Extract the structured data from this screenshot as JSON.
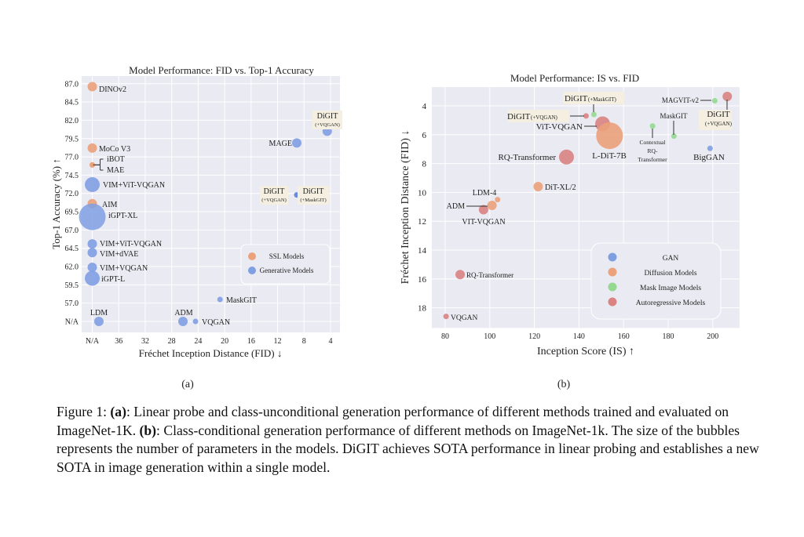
{
  "colors": {
    "plot_bg": "#eaeaf2",
    "grid": "#ffffff",
    "ssl": "#eba17a",
    "generative": "#7f9fe3",
    "generative_dark": "#5b7fdc",
    "gan": "#7f9fe3",
    "diffusion": "#eba17a",
    "mask": "#94d98f",
    "autoregressive": "#d98383",
    "highlight_box": "#f4efe0"
  },
  "chart_data": [
    {
      "type": "scatter",
      "title": "Model Performance: FID vs. Top-1 Accuracy",
      "xlabel": "Fréchet Inception Distance (FID) ↓",
      "ylabel": "Top-1 Accuracy (%) ↑",
      "x_inverted": true,
      "x_ticks": [
        "N/A",
        "36",
        "32",
        "28",
        "24",
        "20",
        "16",
        "12",
        "8",
        "4"
      ],
      "y_ticks": [
        "N/A",
        "57.0",
        "59.5",
        "62.0",
        "64.5",
        "67.0",
        "69.5",
        "72.0",
        "74.5",
        "77.0",
        "79.5",
        "82.0",
        "84.5",
        "87.0"
      ],
      "grid": true,
      "legend": {
        "placement": "center-right",
        "entries": [
          {
            "name": "SSL Models",
            "color": "#eba17a"
          },
          {
            "name": "Generative Models",
            "color": "#7f9fe3"
          }
        ]
      },
      "points": [
        {
          "label": "DINOv2",
          "x": "N/A",
          "y": 86.6,
          "group": "SSL Models",
          "size": "small"
        },
        {
          "label": "MoCo V3",
          "x": "N/A",
          "y": 78.2,
          "group": "SSL Models",
          "size": "small"
        },
        {
          "label": "iBOT",
          "x": "N/A",
          "y": 75.9,
          "group": "SSL Models",
          "size": "tiny"
        },
        {
          "label": "MAE",
          "x": "N/A",
          "y": 75.9,
          "group": "SSL Models",
          "size": "tiny"
        },
        {
          "label": "VIM+ViT-VQGAN",
          "x": "N/A",
          "y": 73.2,
          "group": "Generative Models",
          "size": "large"
        },
        {
          "label": "AIM",
          "x": "N/A",
          "y": 70.6,
          "group": "SSL Models",
          "size": "small"
        },
        {
          "label": "iGPT-XL",
          "x": "N/A",
          "y": 68.8,
          "group": "Generative Models",
          "size": "huge"
        },
        {
          "label": "VIM+ViT-VQGAN",
          "x": "N/A",
          "y": 65.1,
          "group": "Generative Models",
          "size": "small"
        },
        {
          "label": "VIM+dVAE",
          "x": "N/A",
          "y": 63.9,
          "group": "Generative Models",
          "size": "small"
        },
        {
          "label": "VIM+VQGAN",
          "x": "N/A",
          "y": 61.9,
          "group": "Generative Models",
          "size": "small"
        },
        {
          "label": "iGPT-L",
          "x": "N/A",
          "y": 60.4,
          "group": "Generative Models",
          "size": "large"
        },
        {
          "label": "MaskGIT",
          "x": 20.7,
          "y": 57.5,
          "group": "Generative Models",
          "size": "tiny"
        },
        {
          "label": "LDM",
          "x": 39,
          "y": "N/A",
          "group": "Generative Models",
          "size": "small"
        },
        {
          "label": "ADM",
          "x": 26.3,
          "y": "N/A",
          "group": "Generative Models",
          "size": "small"
        },
        {
          "label": "VQGAN",
          "x": 24.4,
          "y": "N/A",
          "group": "Generative Models",
          "size": "tiny"
        },
        {
          "label": "MAGE",
          "x": 9.1,
          "y": 78.9,
          "group": "Generative Models",
          "size": "small"
        },
        {
          "label": "DiGIT",
          "sublabel": "(+VQGAN)",
          "x": 4.5,
          "y": 80.5,
          "group": "Generative Models",
          "size": "small"
        },
        {
          "label": "DiGIT",
          "sublabel": "(+VQGAN)",
          "label2": "DiGIT",
          "sublabel2": "(+MaskGIT)",
          "x": 9.1,
          "y": 71.8,
          "group": "Generative Models",
          "size": "tiny",
          "dark": true
        }
      ]
    },
    {
      "type": "scatter",
      "title": "Model Performance: IS vs. FID",
      "xlabel": "Inception Score (IS) ↑",
      "ylabel": "Fréchet Inception Distance (FID) ↓",
      "y_inverted": true,
      "x_ticks": [
        80,
        100,
        120,
        140,
        160,
        180,
        200
      ],
      "y_ticks": [
        4,
        6,
        8,
        10,
        12,
        14,
        16,
        18
      ],
      "xlim": [
        74,
        212
      ],
      "ylim": [
        2.7,
        19.4
      ],
      "grid": true,
      "legend": {
        "placement": "lower-right",
        "entries": [
          {
            "name": "GAN",
            "color": "#7f9fe3"
          },
          {
            "name": "Diffusion Models",
            "color": "#eba17a"
          },
          {
            "name": "Mask Image Models",
            "color": "#94d98f"
          },
          {
            "name": "Autoregressive Models",
            "color": "#d98383"
          }
        ]
      },
      "points": [
        {
          "label": "DiGIT",
          "sublabel": "(+MaskGIT)",
          "x": 146.7,
          "y": 4.6,
          "group": "Mask Image Models",
          "size": "tiny"
        },
        {
          "label": "DiGIT",
          "sublabel": "(+VQGAN)",
          "x": 143.2,
          "y": 4.7,
          "group": "Autoregressive Models",
          "size": "tiny"
        },
        {
          "label": "ViT-VQGAN",
          "x": 150.6,
          "y": 5.25,
          "group": "Autoregressive Models",
          "size": "large"
        },
        {
          "label": "L-DiT-7B",
          "x": 153.7,
          "y": 6.07,
          "group": "Diffusion Models",
          "size": "huge"
        },
        {
          "label": "RQ-Transformer",
          "x": 134.4,
          "y": 7.55,
          "group": "Autoregressive Models",
          "size": "large"
        },
        {
          "label": "DiT-XL/2",
          "x": 121.7,
          "y": 9.6,
          "group": "Diffusion Models",
          "size": "small"
        },
        {
          "label": "LDM-4",
          "x": 103.5,
          "y": 10.5,
          "group": "Diffusion Models",
          "size": "tiny"
        },
        {
          "label": "ADM",
          "x": 101.0,
          "y": 10.9,
          "group": "Diffusion Models",
          "size": "small"
        },
        {
          "label": "VIT-VQGAN",
          "x": 97.2,
          "y": 11.2,
          "group": "Autoregressive Models",
          "size": "small"
        },
        {
          "label": "Contextual",
          "label_line2": "RQ-",
          "label_line3": "Transformer",
          "x": 173,
          "y": 5.4,
          "group": "Mask Image Models",
          "size": "tiny"
        },
        {
          "label": "MaskGIT",
          "x": 182.6,
          "y": 6.1,
          "group": "Mask Image Models",
          "size": "tiny"
        },
        {
          "label": "BigGAN",
          "x": 198.8,
          "y": 6.95,
          "group": "GAN",
          "size": "tiny"
        },
        {
          "label": "MAGVIT-v2",
          "x": 200.9,
          "y": 3.65,
          "group": "Mask Image Models",
          "size": "tiny"
        },
        {
          "label": "DiGIT",
          "sublabel": "(+VQGAN)",
          "x": 206.5,
          "y": 3.35,
          "group": "Autoregressive Models",
          "size": "small"
        },
        {
          "label": "RQ-Transformer",
          "x": 86.7,
          "y": 15.7,
          "group": "Autoregressive Models",
          "size": "small"
        },
        {
          "label": "VQGAN",
          "x": 80.4,
          "y": 18.6,
          "group": "Autoregressive Models",
          "size": "tiny"
        }
      ]
    }
  ],
  "subfigure_labels": [
    "(a)",
    "(b)"
  ],
  "caption": {
    "prefix": "Figure 1: ",
    "a_tag": "(a)",
    "a_text": ": Linear probe and class-unconditional generation performance of different methods trained and evaluated on ImageNet-1K. ",
    "b_tag": "(b)",
    "b_text": ": Class-conditional generation performance of different methods on ImageNet-1k. The size of the bubbles represents the number of parameters in the models. DiGIT achieves SOTA performance in linear probing and establishes a new SOTA in image generation within a single model."
  }
}
